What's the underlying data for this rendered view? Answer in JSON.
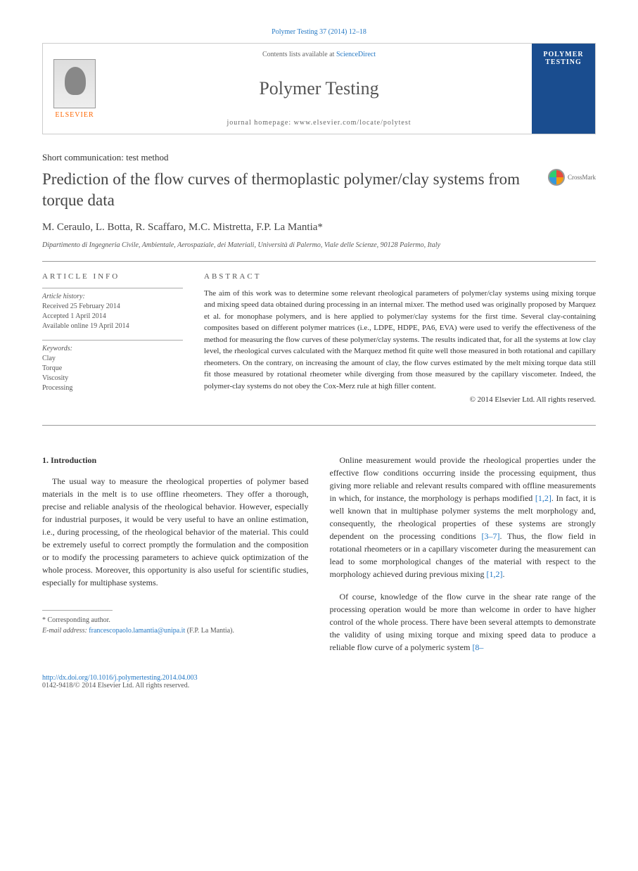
{
  "citation": "Polymer Testing 37 (2014) 12–18",
  "header": {
    "contents_prefix": "Contents lists available at ",
    "contents_link": "ScienceDirect",
    "journal_name": "Polymer Testing",
    "homepage_prefix": "journal homepage: ",
    "homepage_url": "www.elsevier.com/locate/polytest",
    "publisher": "ELSEVIER",
    "cover_title": "POLYMER TESTING"
  },
  "article": {
    "type": "Short communication: test method",
    "title": "Prediction of the flow curves of thermoplastic polymer/clay systems from torque data",
    "crossmark": "CrossMark",
    "authors": "M. Ceraulo, L. Botta, R. Scaffaro, M.C. Mistretta, F.P. La Mantia*",
    "affiliation": "Dipartimento di Ingegneria Civile, Ambientale, Aerospaziale, dei Materiali, Università di Palermo, Viale delle Scienze, 90128 Palermo, Italy"
  },
  "info": {
    "heading": "ARTICLE INFO",
    "history_label": "Article history:",
    "received": "Received 25 February 2014",
    "accepted": "Accepted 1 April 2014",
    "online": "Available online 19 April 2014",
    "keywords_label": "Keywords:",
    "keywords": [
      "Clay",
      "Torque",
      "Viscosity",
      "Processing"
    ]
  },
  "abstract": {
    "heading": "ABSTRACT",
    "text": "The aim of this work was to determine some relevant rheological parameters of polymer/clay systems using mixing torque and mixing speed data obtained during processing in an internal mixer. The method used was originally proposed by Marquez et al. for monophase polymers, and is here applied to polymer/clay systems for the first time. Several clay-containing composites based on different polymer matrices (i.e., LDPE, HDPE, PA6, EVA) were used to verify the effectiveness of the method for measuring the flow curves of these polymer/clay systems. The results indicated that, for all the systems at low clay level, the rheological curves calculated with the Marquez method fit quite well those measured in both rotational and capillary rheometers. On the contrary, on increasing the amount of clay, the flow curves estimated by the melt mixing torque data still fit those measured by rotational rheometer while diverging from those measured by the capillary viscometer. Indeed, the polymer-clay systems do not obey the Cox-Merz rule at high filler content.",
    "copyright": "© 2014 Elsevier Ltd. All rights reserved."
  },
  "body": {
    "section_heading": "1. Introduction",
    "col1_p1": "The usual way to measure the rheological properties of polymer based materials in the melt is to use offline rheometers. They offer a thorough, precise and reliable analysis of the rheological behavior. However, especially for industrial purposes, it would be very useful to have an online estimation, i.e., during processing, of the rheological behavior of the material. This could be extremely useful to correct promptly the formulation and the composition or to modify the processing parameters to achieve quick optimization of the whole process. Moreover, this opportunity is also useful for scientific studies, especially for multiphase systems.",
    "col2_p1_a": "Online measurement would provide the rheological properties under the effective flow conditions occurring inside the processing equipment, thus giving more reliable and relevant results compared with offline measurements in which, for instance, the morphology is perhaps modified ",
    "col2_p1_ref1": "[1,2]",
    "col2_p1_b": ". In fact, it is well known that in multiphase polymer systems the melt morphology and, consequently, the rheological properties of these systems are strongly dependent on the processing conditions ",
    "col2_p1_ref2": "[3–7]",
    "col2_p1_c": ". Thus, the flow field in rotational rheometers or in a capillary viscometer during the measurement can lead to some morphological changes of the material with respect to the morphology achieved during previous mixing ",
    "col2_p1_ref3": "[1,2]",
    "col2_p1_d": ".",
    "col2_p2_a": "Of course, knowledge of the flow curve in the shear rate range of the processing operation would be more than welcome in order to have higher control of the whole process. There have been several attempts to demonstrate the validity of using mixing torque and mixing speed data to produce a reliable flow curve of a polymeric system ",
    "col2_p2_ref1": "[8–"
  },
  "footnote": {
    "corresponding": "* Corresponding author.",
    "email_label": "E-mail address: ",
    "email": "francescopaolo.lamantia@unipa.it",
    "email_suffix": " (F.P. La Mantia)."
  },
  "footer": {
    "doi": "http://dx.doi.org/10.1016/j.polymertesting.2014.04.003",
    "issn": "0142-9418/© 2014 Elsevier Ltd. All rights reserved."
  }
}
